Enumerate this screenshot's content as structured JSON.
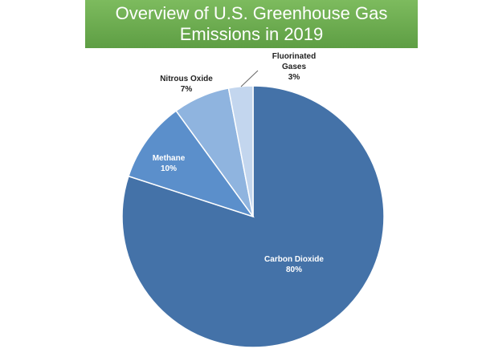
{
  "chart_data": {
    "type": "pie",
    "title_lines": [
      "Overview of U.S. Greenhouse Gas",
      "Emissions in 2019"
    ],
    "slices": [
      {
        "label_lines": [
          "Carbon Dioxide"
        ],
        "value": 80,
        "value_label": "80%",
        "color": "#4472a8",
        "label_color": "#ffffff"
      },
      {
        "label_lines": [
          "Methane"
        ],
        "value": 10,
        "value_label": "10%",
        "color": "#5b8fcb",
        "label_color": "#ffffff"
      },
      {
        "label_lines": [
          "Nitrous Oxide"
        ],
        "value": 7,
        "value_label": "7%",
        "color": "#8fb4df",
        "label_color": "#222222"
      },
      {
        "label_lines": [
          "Fluorinated",
          "Gases"
        ],
        "value": 3,
        "value_label": "3%",
        "color": "#c3d6ee",
        "label_color": "#222222"
      }
    ],
    "start_angle": "12 o'clock, counter-clockwise order from Carbon Dioxide going clockwise"
  }
}
